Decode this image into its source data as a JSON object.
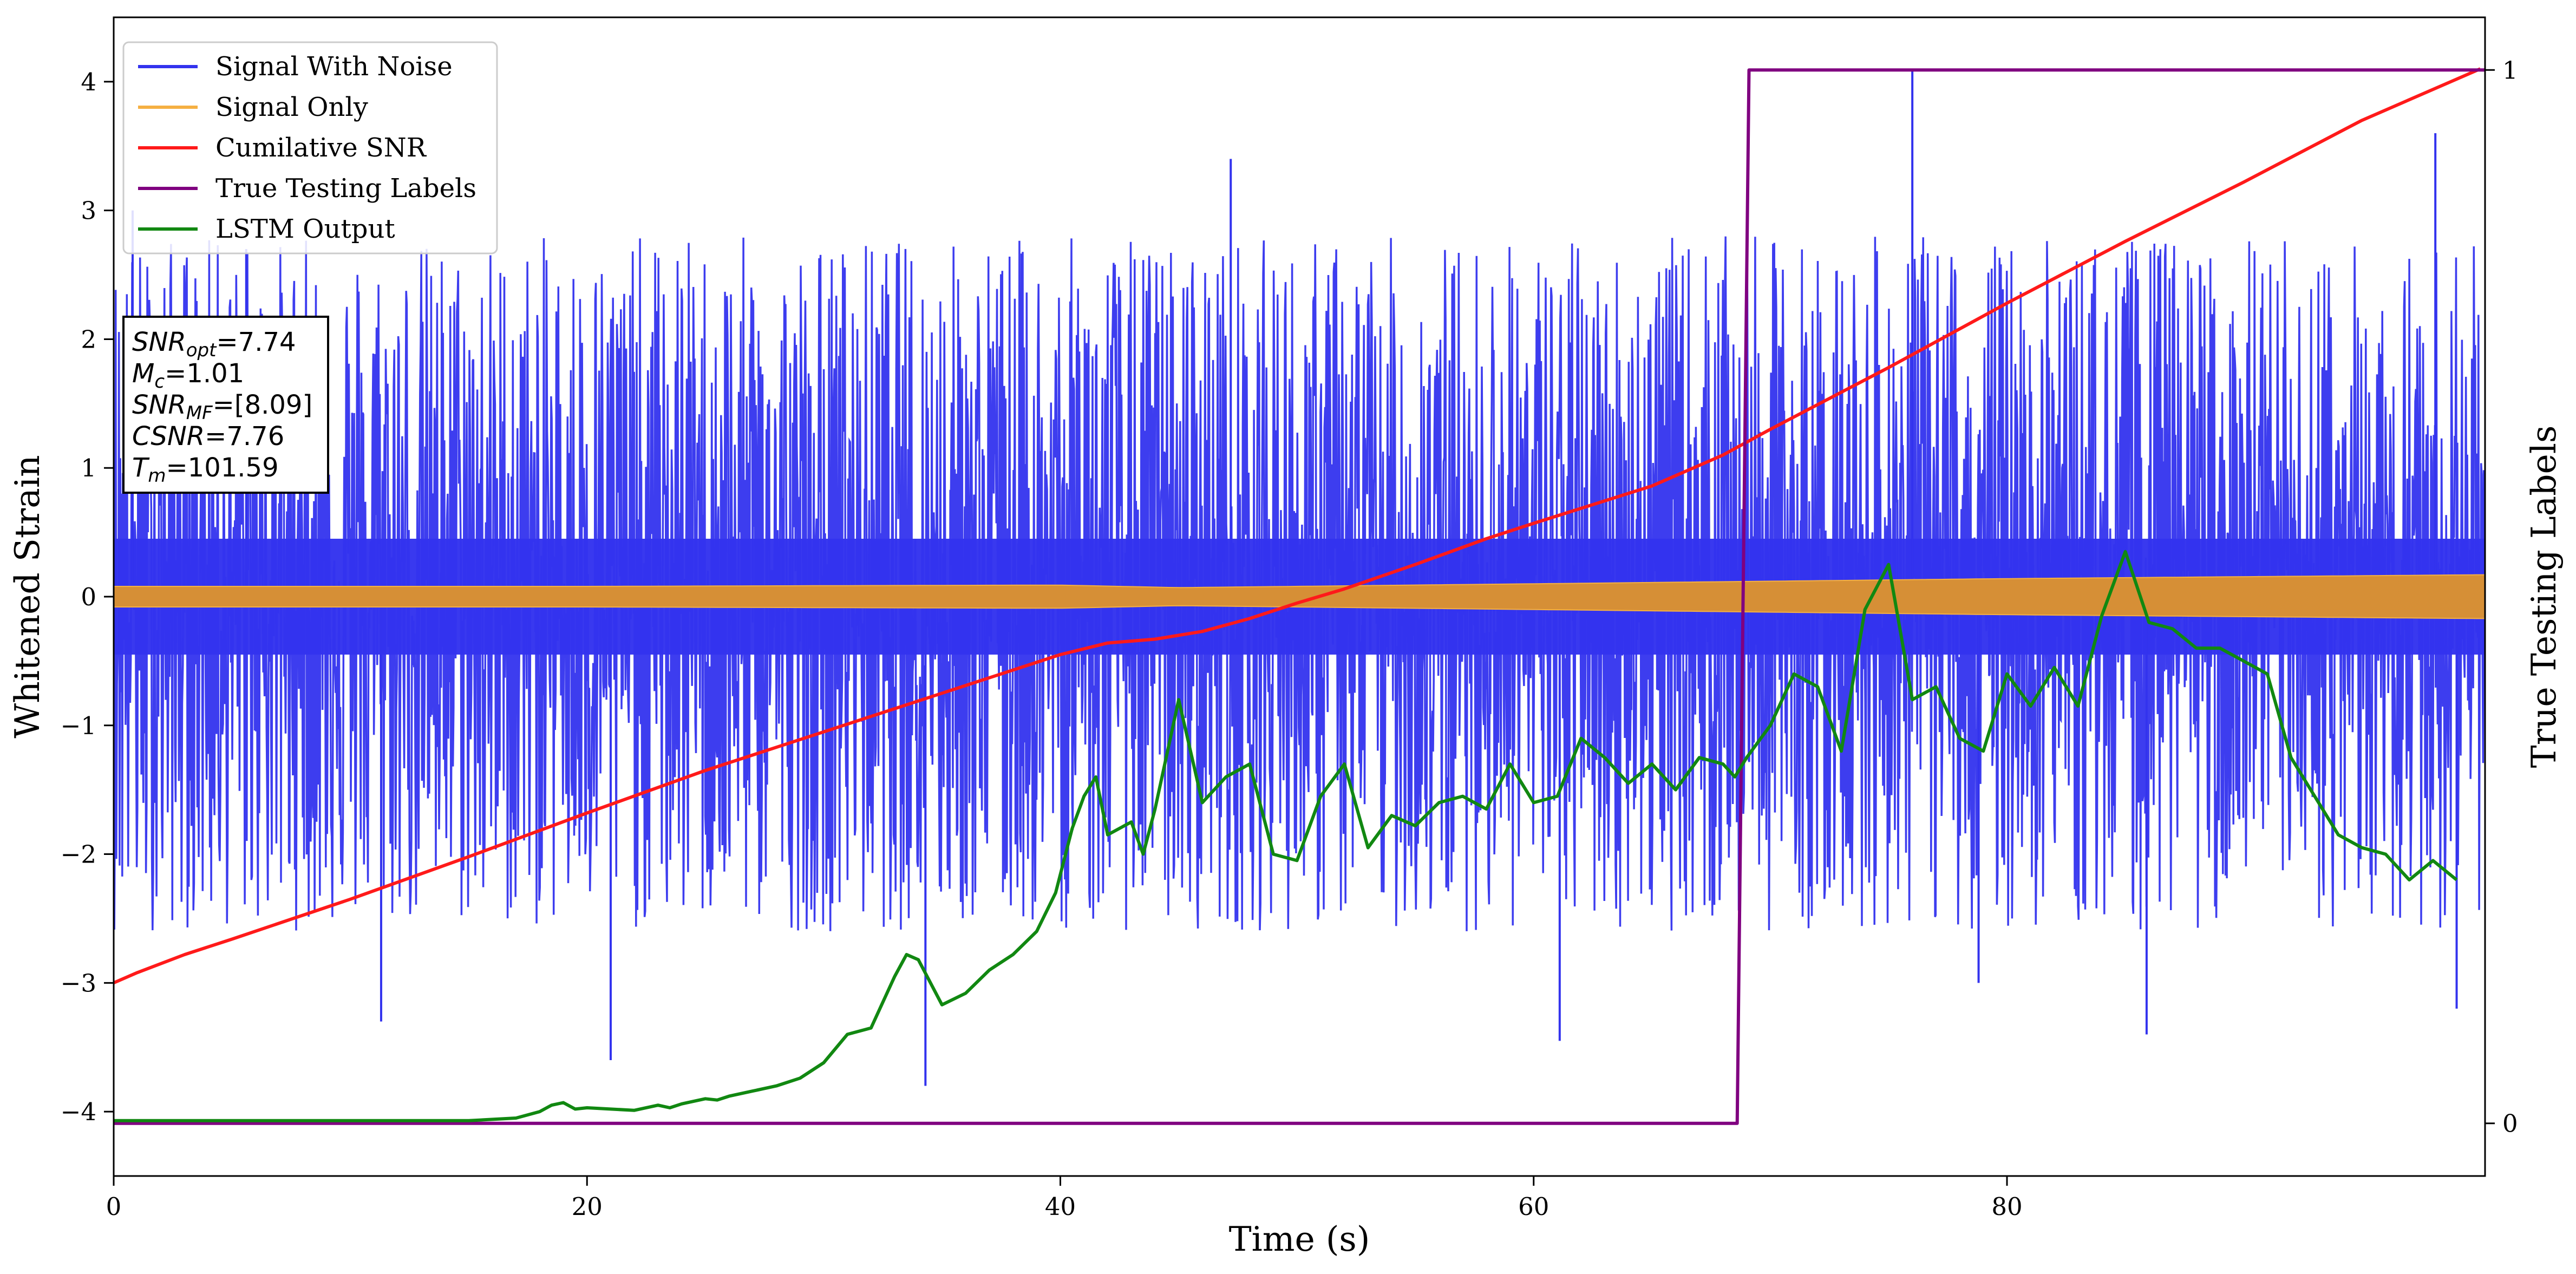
{
  "chart_data": {
    "type": "line",
    "xlabel": "Time (s)",
    "ylabel": "Whitened Strain",
    "ylabel_right": "True Testing Labels",
    "xlim": [
      0,
      100.2
    ],
    "ylim": [
      -4.5,
      4.5
    ],
    "ylim_right": [
      -0.05,
      1.05
    ],
    "x_ticks": [
      0,
      20,
      40,
      60,
      80
    ],
    "y_ticks": [
      -4,
      -3,
      -2,
      -1,
      0,
      1,
      2,
      3,
      4
    ],
    "y_ticks_right": [
      0,
      1
    ],
    "legend": {
      "position": "top-left",
      "entries": [
        {
          "label": "Signal With Noise",
          "color": "#3333ee"
        },
        {
          "label": "Signal Only",
          "color": "#f5b042"
        },
        {
          "label": "Cumilative SNR",
          "color": "#ff1a1a"
        },
        {
          "label": "True Testing Labels",
          "color": "#800080"
        },
        {
          "label": "LSTM Output",
          "color": "#118811"
        }
      ]
    },
    "annotation": [
      {
        "name": "SNR",
        "sub": "opt",
        "value": "=7.74"
      },
      {
        "name": "M",
        "sub": "c",
        "value": "=1.01"
      },
      {
        "name": "SNR",
        "sub": "MF",
        "value": "=[8.09]"
      },
      {
        "name": "CSNR",
        "sub": "",
        "value": "=7.76"
      },
      {
        "name": "T",
        "sub": "m",
        "value": "=101.59"
      }
    ],
    "series": [
      {
        "name": "Signal With Noise",
        "color": "#3333ee",
        "kind": "noise",
        "envelope_upper": 1.8,
        "envelope_lower": -1.6,
        "peaks": [
          [
            0.8,
            3.0
          ],
          [
            5.6,
            2.7
          ],
          [
            11.3,
            -3.3
          ],
          [
            21.0,
            -3.6
          ],
          [
            34.3,
            -3.8
          ],
          [
            47.2,
            3.4
          ],
          [
            61.1,
            -3.45
          ],
          [
            76.0,
            4.1
          ],
          [
            78.8,
            -3.0
          ],
          [
            85.9,
            -3.4
          ],
          [
            98.1,
            3.6
          ],
          [
            99.0,
            -3.2
          ]
        ]
      },
      {
        "name": "Signal Only",
        "color": "#f5b042",
        "kind": "band",
        "amplitude": [
          [
            0,
            0.08
          ],
          [
            20,
            0.08
          ],
          [
            40,
            0.09
          ],
          [
            45,
            0.07
          ],
          [
            60,
            0.1
          ],
          [
            80,
            0.14
          ],
          [
            100,
            0.17
          ]
        ]
      },
      {
        "name": "Cumilative SNR",
        "color": "#ff1a1a",
        "x": [
          0,
          1,
          3,
          5,
          10,
          15,
          20,
          25,
          30,
          35,
          40,
          42,
          44,
          46,
          48,
          50,
          52,
          55,
          58,
          60,
          65,
          68,
          70,
          75,
          80,
          85,
          90,
          95,
          100
        ],
        "y": [
          -3.0,
          -2.92,
          -2.78,
          -2.66,
          -2.35,
          -2.02,
          -1.68,
          -1.35,
          -1.05,
          -0.75,
          -0.45,
          -0.36,
          -0.33,
          -0.27,
          -0.17,
          -0.05,
          0.06,
          0.25,
          0.45,
          0.57,
          0.86,
          1.1,
          1.3,
          1.78,
          2.28,
          2.76,
          3.22,
          3.7,
          4.1
        ]
      },
      {
        "name": "True Testing Labels",
        "color": "#800080",
        "axis": "right",
        "x": [
          0,
          68.6,
          69.1,
          100.2
        ],
        "y": [
          0,
          0,
          1,
          1
        ]
      },
      {
        "name": "LSTM Output",
        "color": "#118811",
        "x": [
          0,
          10,
          15,
          16,
          17,
          18,
          18.5,
          19,
          19.5,
          20,
          21,
          22,
          23,
          23.5,
          24,
          25,
          25.5,
          26,
          27,
          28,
          29,
          30,
          31,
          32,
          33,
          33.5,
          34,
          35,
          36,
          37,
          38,
          39,
          39.8,
          40.5,
          41,
          41.5,
          42,
          43,
          43.5,
          44,
          45,
          46,
          47,
          48,
          49,
          50,
          51,
          52,
          53,
          54,
          55,
          56,
          57,
          58,
          59,
          60,
          61,
          62,
          63,
          64,
          65,
          66,
          67,
          68,
          68.5,
          69,
          70,
          71,
          72,
          73,
          74,
          75,
          76,
          77,
          78,
          79,
          80,
          81,
          82,
          83,
          84,
          85,
          86,
          87,
          88,
          89,
          90,
          91,
          92,
          93,
          94,
          95,
          96,
          97,
          98,
          99
        ],
        "y": [
          -4.07,
          -4.07,
          -4.07,
          -4.06,
          -4.05,
          -4.0,
          -3.95,
          -3.93,
          -3.98,
          -3.97,
          -3.98,
          -3.99,
          -3.95,
          -3.97,
          -3.94,
          -3.9,
          -3.91,
          -3.88,
          -3.84,
          -3.8,
          -3.74,
          -3.62,
          -3.4,
          -3.35,
          -2.95,
          -2.78,
          -2.82,
          -3.17,
          -3.08,
          -2.9,
          -2.78,
          -2.6,
          -2.3,
          -1.8,
          -1.55,
          -1.4,
          -1.85,
          -1.75,
          -2.0,
          -1.65,
          -0.8,
          -1.6,
          -1.4,
          -1.3,
          -2.0,
          -2.05,
          -1.55,
          -1.3,
          -1.95,
          -1.7,
          -1.78,
          -1.6,
          -1.55,
          -1.65,
          -1.3,
          -1.6,
          -1.55,
          -1.1,
          -1.25,
          -1.45,
          -1.3,
          -1.5,
          -1.25,
          -1.3,
          -1.4,
          -1.25,
          -1.0,
          -0.6,
          -0.7,
          -1.2,
          -0.1,
          0.25,
          -0.8,
          -0.7,
          -1.1,
          -1.2,
          -0.6,
          -0.85,
          -0.55,
          -0.85,
          -0.15,
          0.35,
          -0.2,
          -0.25,
          -0.4,
          -0.4,
          -0.5,
          -0.6,
          -1.25,
          -1.55,
          -1.85,
          -1.95,
          -2.0,
          -2.2,
          -2.05,
          -2.2
        ]
      }
    ]
  }
}
